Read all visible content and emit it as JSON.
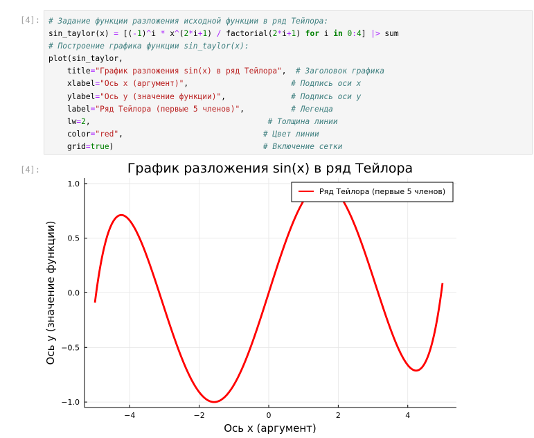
{
  "cell": {
    "input_prompt": "[4]:",
    "output_prompt": "[4]:",
    "code_lines": [
      [
        {
          "c": "cm",
          "t": "# Задание функции разложения исходной функции в ряд Тейлора:"
        }
      ],
      [
        {
          "c": "pl",
          "t": "sin_taylor(x) "
        },
        {
          "c": "op",
          "t": "="
        },
        {
          "c": "pl",
          "t": " [("
        },
        {
          "c": "op",
          "t": "-"
        },
        {
          "c": "nm",
          "t": "1"
        },
        {
          "c": "pl",
          "t": ")"
        },
        {
          "c": "op",
          "t": "^"
        },
        {
          "c": "pl",
          "t": "i "
        },
        {
          "c": "op",
          "t": "*"
        },
        {
          "c": "pl",
          "t": " x"
        },
        {
          "c": "op",
          "t": "^"
        },
        {
          "c": "pl",
          "t": "("
        },
        {
          "c": "nm",
          "t": "2"
        },
        {
          "c": "op",
          "t": "*"
        },
        {
          "c": "pl",
          "t": "i"
        },
        {
          "c": "op",
          "t": "+"
        },
        {
          "c": "nm",
          "t": "1"
        },
        {
          "c": "pl",
          "t": ") "
        },
        {
          "c": "op",
          "t": "/"
        },
        {
          "c": "pl",
          "t": " factorial("
        },
        {
          "c": "nm",
          "t": "2"
        },
        {
          "c": "op",
          "t": "*"
        },
        {
          "c": "pl",
          "t": "i"
        },
        {
          "c": "op",
          "t": "+"
        },
        {
          "c": "nm",
          "t": "1"
        },
        {
          "c": "pl",
          "t": ") "
        },
        {
          "c": "kw",
          "t": "for"
        },
        {
          "c": "pl",
          "t": " i "
        },
        {
          "c": "kw",
          "t": "in"
        },
        {
          "c": "pl",
          "t": " "
        },
        {
          "c": "nm",
          "t": "0"
        },
        {
          "c": "op",
          "t": ":"
        },
        {
          "c": "nm",
          "t": "4"
        },
        {
          "c": "pl",
          "t": "] "
        },
        {
          "c": "op",
          "t": "|>"
        },
        {
          "c": "pl",
          "t": " sum"
        }
      ],
      [
        {
          "c": "cm",
          "t": "# Построение графика функции sin_taylor(x):"
        }
      ],
      [
        {
          "c": "pl",
          "t": "plot(sin_taylor,"
        }
      ],
      [
        {
          "c": "pl",
          "t": "    title"
        },
        {
          "c": "op",
          "t": "="
        },
        {
          "c": "st",
          "t": "\"График разложения sin(x) в ряд Тейлора\""
        },
        {
          "c": "pl",
          "t": ",  "
        },
        {
          "c": "cm",
          "t": "# Заголовок графика"
        }
      ],
      [
        {
          "c": "pl",
          "t": "    xlabel"
        },
        {
          "c": "op",
          "t": "="
        },
        {
          "c": "st",
          "t": "\"Ось x (аргумент)\""
        },
        {
          "c": "pl",
          "t": ",                      "
        },
        {
          "c": "cm",
          "t": "# Подпись оси x"
        }
      ],
      [
        {
          "c": "pl",
          "t": "    ylabel"
        },
        {
          "c": "op",
          "t": "="
        },
        {
          "c": "st",
          "t": "\"Ось y (значение функции)\""
        },
        {
          "c": "pl",
          "t": ",              "
        },
        {
          "c": "cm",
          "t": "# Подпись оси y"
        }
      ],
      [
        {
          "c": "pl",
          "t": "    label"
        },
        {
          "c": "op",
          "t": "="
        },
        {
          "c": "st",
          "t": "\"Ряд Тейлора (первые 5 членов)\""
        },
        {
          "c": "pl",
          "t": ",          "
        },
        {
          "c": "cm",
          "t": "# Легенда"
        }
      ],
      [
        {
          "c": "pl",
          "t": "    lw"
        },
        {
          "c": "op",
          "t": "="
        },
        {
          "c": "nm",
          "t": "2"
        },
        {
          "c": "pl",
          "t": ",                                      "
        },
        {
          "c": "cm",
          "t": "# Толщина линии"
        }
      ],
      [
        {
          "c": "pl",
          "t": "    color"
        },
        {
          "c": "op",
          "t": "="
        },
        {
          "c": "st",
          "t": "\"red\""
        },
        {
          "c": "pl",
          "t": ",                              "
        },
        {
          "c": "cm",
          "t": "# Цвет линии"
        }
      ],
      [
        {
          "c": "pl",
          "t": "    grid"
        },
        {
          "c": "op",
          "t": "="
        },
        {
          "c": "nm",
          "t": "true"
        },
        {
          "c": "pl",
          "t": ")                                "
        },
        {
          "c": "cm",
          "t": "# Включение сетки"
        }
      ]
    ]
  },
  "chart_data": {
    "type": "line",
    "title": "График разложения sin(x) в ряд Тейлора",
    "xlabel": "Ось x (аргумент)",
    "ylabel": "Ось y (значение функции)",
    "xlim": [
      -5.3,
      5.4
    ],
    "ylim": [
      -1.05,
      1.05
    ],
    "xticks": [
      -4,
      -2,
      0,
      2,
      4
    ],
    "xtick_labels": [
      "−4",
      "−2",
      "0",
      "2",
      "4"
    ],
    "yticks": [
      -1.0,
      -0.5,
      0.0,
      0.5,
      1.0
    ],
    "ytick_labels": [
      "−1.0",
      "−0.5",
      "0.0",
      "0.5",
      "1.0"
    ],
    "grid": true,
    "legend_position": "top-right",
    "series": [
      {
        "name": "Ряд Тейлора (первые 5 членов)",
        "color": "#ff0000",
        "function": "sum_{i=0..4} (-1)^i x^(2i+1)/(2i+1)!",
        "x_range": [
          -5,
          5
        ]
      }
    ]
  }
}
